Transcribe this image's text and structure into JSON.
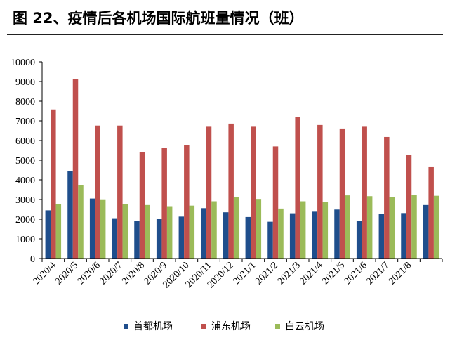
{
  "title": "图 22、疫情后各机场国际航班量情况（班）",
  "colors": {
    "series": [
      "#1f4e8c",
      "#c0504d",
      "#9bbb59"
    ],
    "axis": "#000000"
  },
  "chart_data": {
    "type": "bar",
    "categories": [
      "2020/4",
      "2020/5",
      "2020/6",
      "2020/7",
      "2020/8",
      "2020/9",
      "2020/10",
      "2020/11",
      "2020/12",
      "2021/1",
      "2021/2",
      "2021/3",
      "2021/4",
      "2021/5",
      "2021/6",
      "2021/7",
      "2021/8",
      ""
    ],
    "series": [
      {
        "name": "首都机场",
        "values": [
          2450,
          4450,
          3050,
          2050,
          1920,
          2000,
          2130,
          2560,
          2350,
          2110,
          1870,
          2300,
          2380,
          2490,
          1900,
          2250,
          2310,
          2720
        ]
      },
      {
        "name": "浦东机场",
        "values": [
          7580,
          9130,
          6760,
          6760,
          5400,
          5630,
          5750,
          6700,
          6860,
          6700,
          5700,
          7200,
          6790,
          6610,
          6700,
          6180,
          5260,
          4680
        ]
      },
      {
        "name": "白云机场",
        "values": [
          2780,
          3720,
          3010,
          2750,
          2720,
          2660,
          2690,
          2910,
          3120,
          3030,
          2540,
          2910,
          2880,
          3210,
          3170,
          3110,
          3240,
          3190
        ]
      }
    ],
    "title": "",
    "xlabel": "",
    "ylabel": "",
    "ylim": [
      0,
      10000
    ],
    "yticks": [
      "0",
      "1000",
      "2000",
      "3000",
      "4000",
      "5000",
      "6000",
      "7000",
      "8000",
      "9000",
      "10000"
    ],
    "grid": false,
    "legend": "bottom"
  }
}
